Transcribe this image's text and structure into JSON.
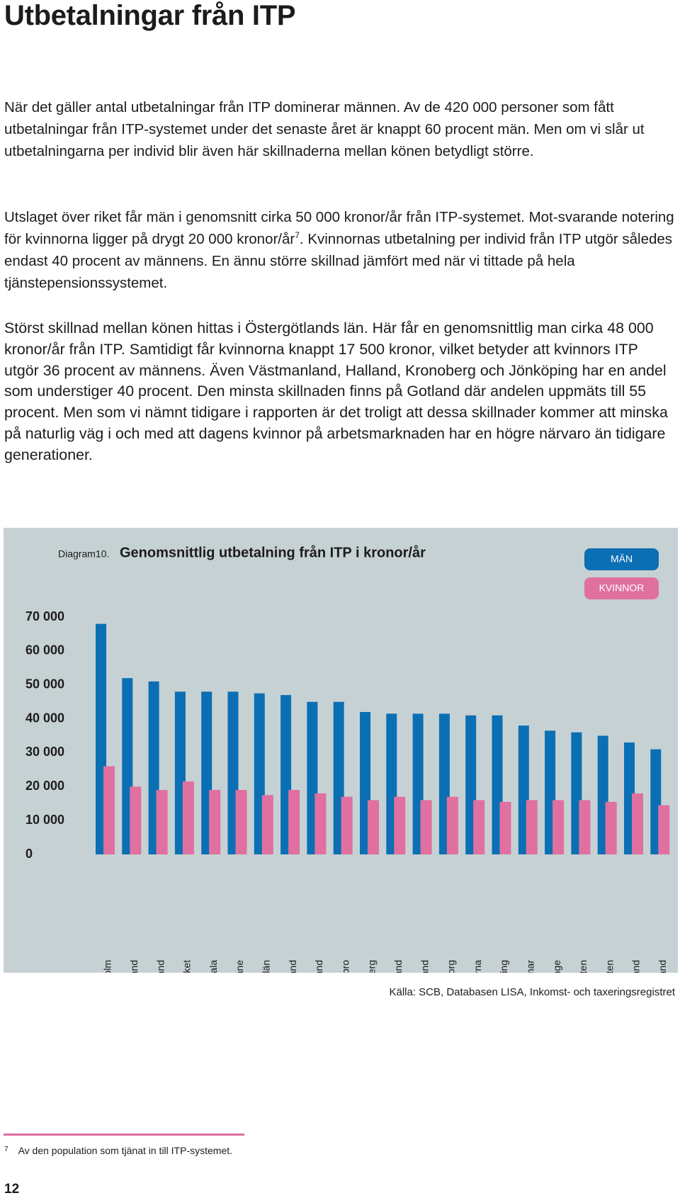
{
  "header": {
    "title": "Utbetalningar från ITP"
  },
  "paragraphs": [
    {
      "text": "När det gäller antal utbetalningar från ITP dominerar männen. Av de 420 000 personer som fått utbetalningar från ITP-systemet under det senaste året är knappt 60 procent män. Men om vi slår ut utbetalningarna per individ blir även här skillnaderna mellan könen betydligt större."
    },
    {
      "text": "Utslaget över riket får män i genomsnitt cirka 50 000 kronor/år från ITP-systemet. Mot-svarande notering för kvinnorna ligger på drygt 20 000 kronor/år",
      "note_ref": "7",
      "text_after": ". Kvinnornas utbetalning per individ från ITP utgör således endast 40 procent av männens. En ännu större skillnad jämfört med när vi tittade på hela tjänstepensionssystemet."
    },
    {
      "text": "Störst skillnad mellan könen hittas i Östergötlands län. Här får en genomsnittlig man cirka 48 000 kronor/år från ITP. Samtidigt får kvinnorna knappt 17 500 kronor, vilket betyder att kvinnors ITP utgör 36 procent av männens. Även Västmanland, Halland, Kronoberg och Jönköping har en andel som understiger 40 procent. Den minsta skillnaden finns på Gotland där andelen uppmäts till 55 procent. Men som vi nämnt tidigare i rapporten är det troligt att dessa skillnader kommer att minska på naturlig väg i och med att dagens kvinnor på arbetsmarknaden har en högre närvaro än tidigare generationer."
    }
  ],
  "chart_data": {
    "type": "bar",
    "label": "Diagram10.",
    "title": "Genomsnittlig utbetalning från ITP i kronor/år",
    "categories": [
      "Stockholm",
      "Västmanland",
      "Halland",
      "Riket",
      "Uppsala",
      "Skåne",
      "Östergötlands län",
      "Södermanland",
      "Västra Götaland",
      "Örebro",
      "Kronoberg",
      "Västernorrland",
      "Värmland",
      "Gävleborg",
      "Dalarna",
      "Jönköping",
      "Kalmar",
      "Blekinge",
      "Norrbotten",
      "Västerbotten",
      "Gotland",
      "Jämtland"
    ],
    "series": [
      {
        "name": "MÄN",
        "color": "#0b6fb4",
        "values": [
          68000,
          52000,
          51000,
          48000,
          48000,
          48000,
          47500,
          47000,
          45000,
          45000,
          42000,
          41500,
          41500,
          41500,
          41000,
          41000,
          38000,
          36500,
          36000,
          35000,
          33000,
          31000
        ]
      },
      {
        "name": "KVINNOR",
        "color": "#e070a0",
        "values": [
          26000,
          20000,
          19000,
          21500,
          19000,
          19000,
          17500,
          19000,
          18000,
          17000,
          16000,
          17000,
          16000,
          17000,
          16000,
          15500,
          16000,
          16000,
          16000,
          15500,
          18000,
          14500
        ]
      }
    ],
    "ylim": [
      0,
      70000
    ],
    "yticks": [
      0,
      {
        "value": 10000,
        "label": "10 000"
      },
      {
        "value": 20000,
        "label": "20 000"
      },
      {
        "value": 30000,
        "label": "30 000"
      },
      {
        "value": 40000,
        "label": "40 000"
      },
      {
        "value": 50000,
        "label": "50 000"
      },
      {
        "value": 60000,
        "label": "60 000"
      },
      {
        "value": 70000,
        "label": "70 000"
      }
    ],
    "grid": false,
    "legend": "top-right",
    "background": "#c6d1d4",
    "source": "Källa: SCB, Databasen LISA, Inkomst- och taxeringsregistret"
  },
  "footnote": {
    "number": "7",
    "text": "Av den population som tjänat in till ITP-systemet."
  },
  "page_number": "12"
}
